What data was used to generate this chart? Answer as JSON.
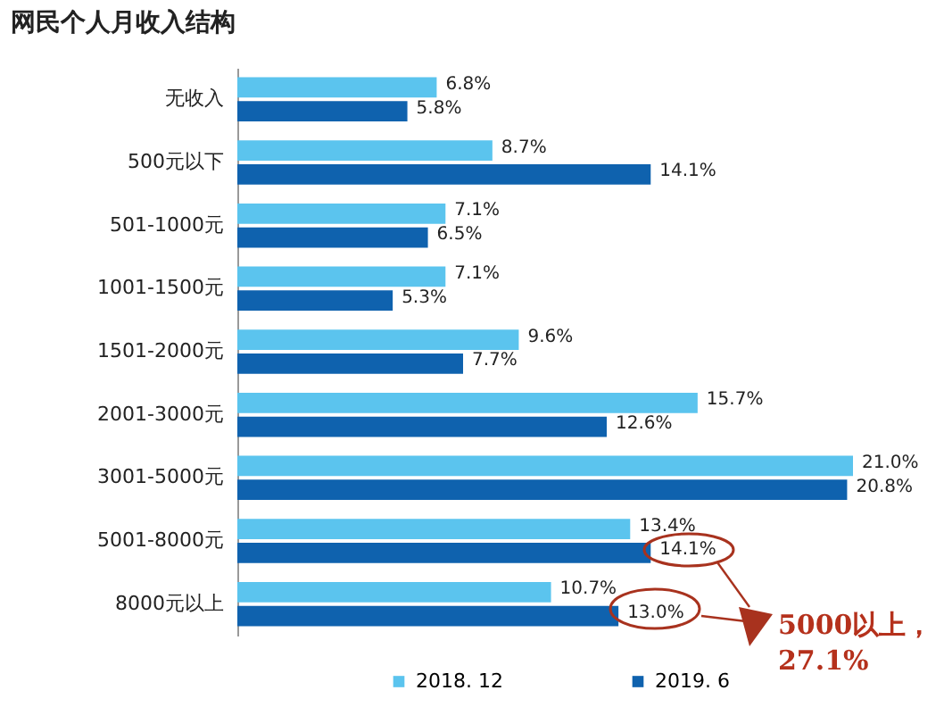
{
  "chart_data": {
    "type": "bar",
    "orientation": "horizontal",
    "title": "网民个人月收入结构",
    "categories": [
      "无收入",
      "500元以下",
      "501-1000元",
      "1001-1500元",
      "1501-2000元",
      "2001-3000元",
      "3001-5000元",
      "5001-8000元",
      "8000元以上"
    ],
    "series": [
      {
        "name": "2018. 12",
        "color": "#5bc4ee",
        "values": [
          6.8,
          8.7,
          7.1,
          7.1,
          9.6,
          15.7,
          21.0,
          13.4,
          10.7
        ],
        "value_labels": [
          "6.8%",
          "8.7%",
          "7.1%",
          "7.1%",
          "9.6%",
          "15.7%",
          "21.0%",
          "13.4%",
          "10.7%"
        ]
      },
      {
        "name": "2019. 6",
        "color": "#0f62ae",
        "values": [
          5.8,
          14.1,
          6.5,
          5.3,
          7.7,
          12.6,
          20.8,
          14.1,
          13.0
        ],
        "value_labels": [
          "5.8%",
          "14.1%",
          "6.5%",
          "5.3%",
          "7.7%",
          "12.6%",
          "20.8%",
          "14.1%",
          "13.0%"
        ]
      }
    ],
    "legend": "bottom",
    "annotations": [
      "5000以上，\n27.1%"
    ]
  }
}
